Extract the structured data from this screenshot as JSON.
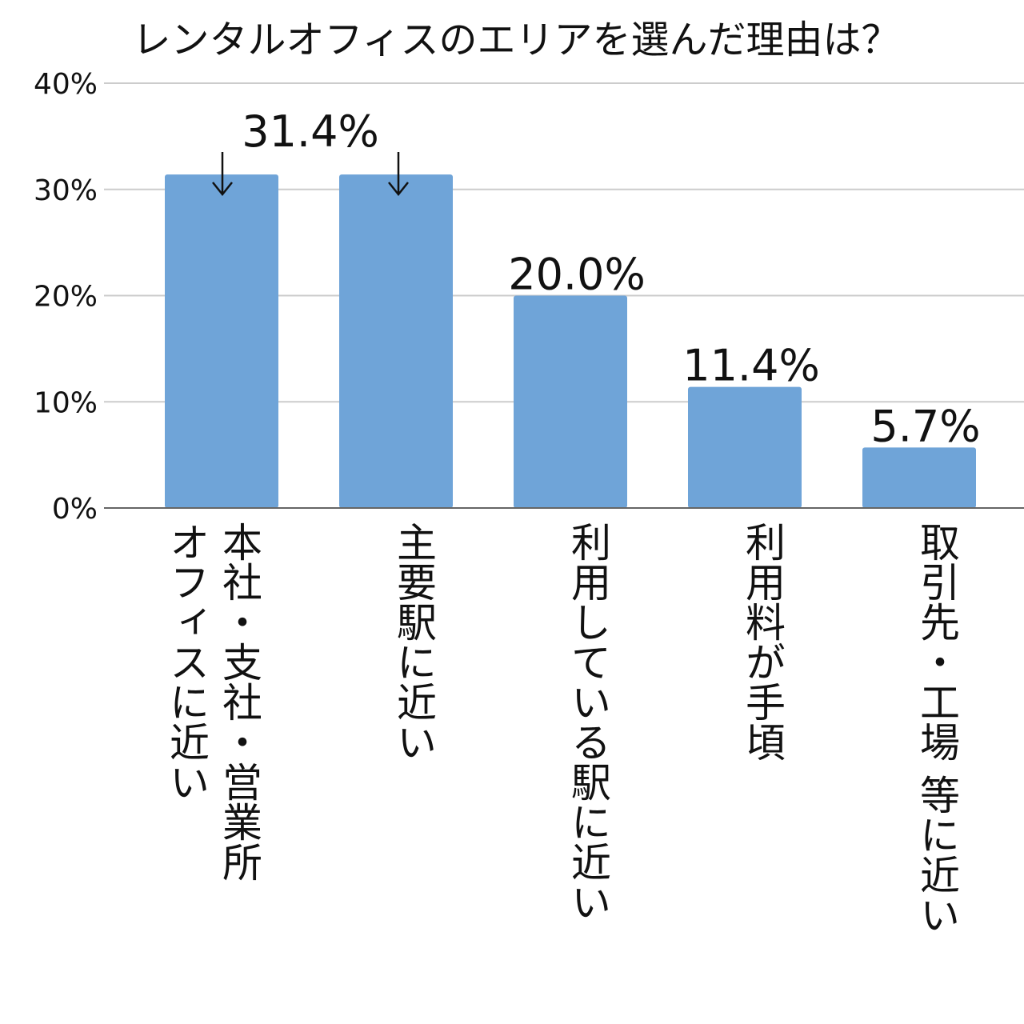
{
  "chart_data": {
    "type": "bar",
    "title": "レンタルオフィスのエリアを選んだ理由は？",
    "categories": [
      [
        "本社・支社・営業所",
        "オフィスに近い"
      ],
      [
        "主要駅に近い"
      ],
      [
        "利用している駅に近い"
      ],
      [
        "利用料が手頃"
      ],
      [
        "取引先・工場 等に近い"
      ]
    ],
    "values": [
      31.4,
      31.4,
      20.0,
      11.4,
      5.7
    ],
    "data_labels": [
      "",
      "",
      "20.0%",
      "11.4%",
      "5.7%"
    ],
    "shared_label": "31.4%",
    "y_ticks": [
      "0%",
      "10%",
      "20%",
      "30%",
      "40%"
    ],
    "ylim": [
      0,
      40
    ],
    "grid": true,
    "legend": "none",
    "colors": {
      "bar": "#6fa4d8",
      "grid": "#cccccc",
      "axis": "#666666",
      "text": "#111111"
    }
  }
}
